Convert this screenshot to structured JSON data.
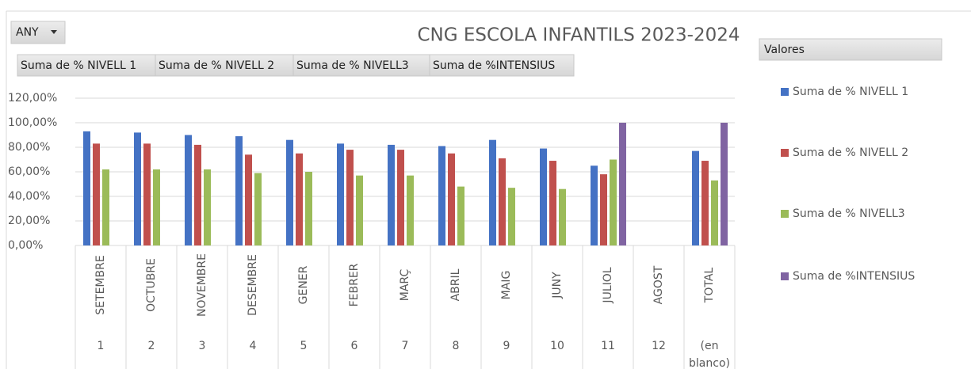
{
  "chart_data": {
    "type": "bar",
    "title": "CNG ESCOLA INFANTILS 2023-2024",
    "filter_button": "ANY",
    "field_buttons": [
      "Suma de % NIVELL 1",
      "Suma de % NIVELL 2",
      "Suma de % NIVELL3",
      "Suma de %INTENSIUS"
    ],
    "legend_title": "Valores",
    "categories": [
      "SETEMBRE",
      "OCTUBRE",
      "NOVEMBRE",
      "DESEMBRE",
      "GENER",
      "FEBRER",
      "MARÇ",
      "ABRIL",
      "MAIG",
      "JUNY",
      "JULIOL",
      "AGOST",
      "TOTAL"
    ],
    "category_groups": [
      "1",
      "2",
      "3",
      "4",
      "5",
      "6",
      "7",
      "8",
      "9",
      "10",
      "11",
      "12",
      "(en blanco)"
    ],
    "series": [
      {
        "name": "Suma de % NIVELL 1",
        "color": "#4472c4",
        "values": [
          93,
          92,
          90,
          89,
          86,
          83,
          82,
          81,
          86,
          79,
          65,
          null,
          77
        ]
      },
      {
        "name": "Suma de % NIVELL 2",
        "color": "#c0504d",
        "values": [
          83,
          83,
          82,
          74,
          75,
          78,
          78,
          75,
          71,
          69,
          58,
          null,
          69
        ]
      },
      {
        "name": "Suma de % NIVELL3",
        "color": "#9bbb59",
        "values": [
          62,
          62,
          62,
          59,
          60,
          57,
          57,
          48,
          47,
          46,
          70,
          null,
          53
        ]
      },
      {
        "name": "Suma de %INTENSIUS",
        "color": "#8064a2",
        "values": [
          null,
          null,
          null,
          null,
          null,
          null,
          null,
          null,
          null,
          null,
          100,
          null,
          100
        ]
      }
    ],
    "ylim": [
      0,
      120
    ],
    "yticks": [
      {
        "value": 0,
        "label": "0,00%"
      },
      {
        "value": 20,
        "label": "20,00%"
      },
      {
        "value": 40,
        "label": "40,00%"
      },
      {
        "value": 60,
        "label": "60,00%"
      },
      {
        "value": 80,
        "label": "80,00%"
      },
      {
        "value": 100,
        "label": "100,00%"
      },
      {
        "value": 120,
        "label": "120,00%"
      }
    ],
    "grid": true
  }
}
